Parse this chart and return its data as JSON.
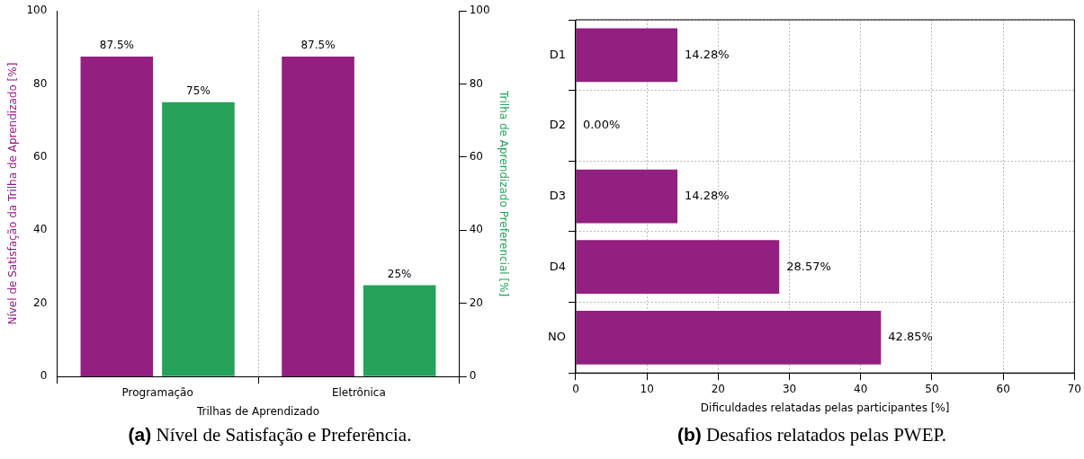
{
  "chart_data": [
    {
      "type": "bar",
      "categories": [
        "Programação",
        "Eletrônica"
      ],
      "xlabel": "Trilhas de Aprendizado",
      "ylabel": "Nível de Satisfação da Trilha de Aprendizado [%]",
      "y2label": "Trilha de Aprendizado Preferencial [%]",
      "ylim": [
        0,
        100
      ],
      "yticks": [
        0,
        20,
        40,
        60,
        80,
        100
      ],
      "y2lim": [
        0,
        100
      ],
      "y2ticks": [
        0,
        20,
        40,
        60,
        80,
        100
      ],
      "grid": "x",
      "legend": false,
      "series": [
        {
          "color": "#931f80",
          "values": [
            87.5,
            87.5
          ],
          "value_labels": [
            "87.5%",
            "87.5%"
          ]
        },
        {
          "color": "#26a35a",
          "values": [
            75,
            25
          ],
          "value_labels": [
            "75%",
            "25%"
          ],
          "axis": "y2"
        }
      ],
      "annotations": [
        "(a) Nível de Satisfação e Preferência."
      ]
    },
    {
      "type": "bar",
      "orientation": "horizontal",
      "categories": [
        "D1",
        "D2",
        "D3",
        "D4",
        "NO"
      ],
      "xlabel": "Dificuldades relatadas pelas participantes [%]",
      "xlim": [
        0,
        70
      ],
      "xticks": [
        0,
        10,
        20,
        30,
        40,
        50,
        60,
        70
      ],
      "grid": true,
      "legend": false,
      "series": [
        {
          "color": "#931f80",
          "values": [
            14.28,
            0,
            14.28,
            28.57,
            42.85
          ],
          "value_labels": [
            "14.28%",
            "0.00%",
            "14.28%",
            "28.57%",
            "42.85%"
          ]
        }
      ],
      "annotations": [
        "(b) Desafios relatados pelas PWEP."
      ]
    }
  ]
}
